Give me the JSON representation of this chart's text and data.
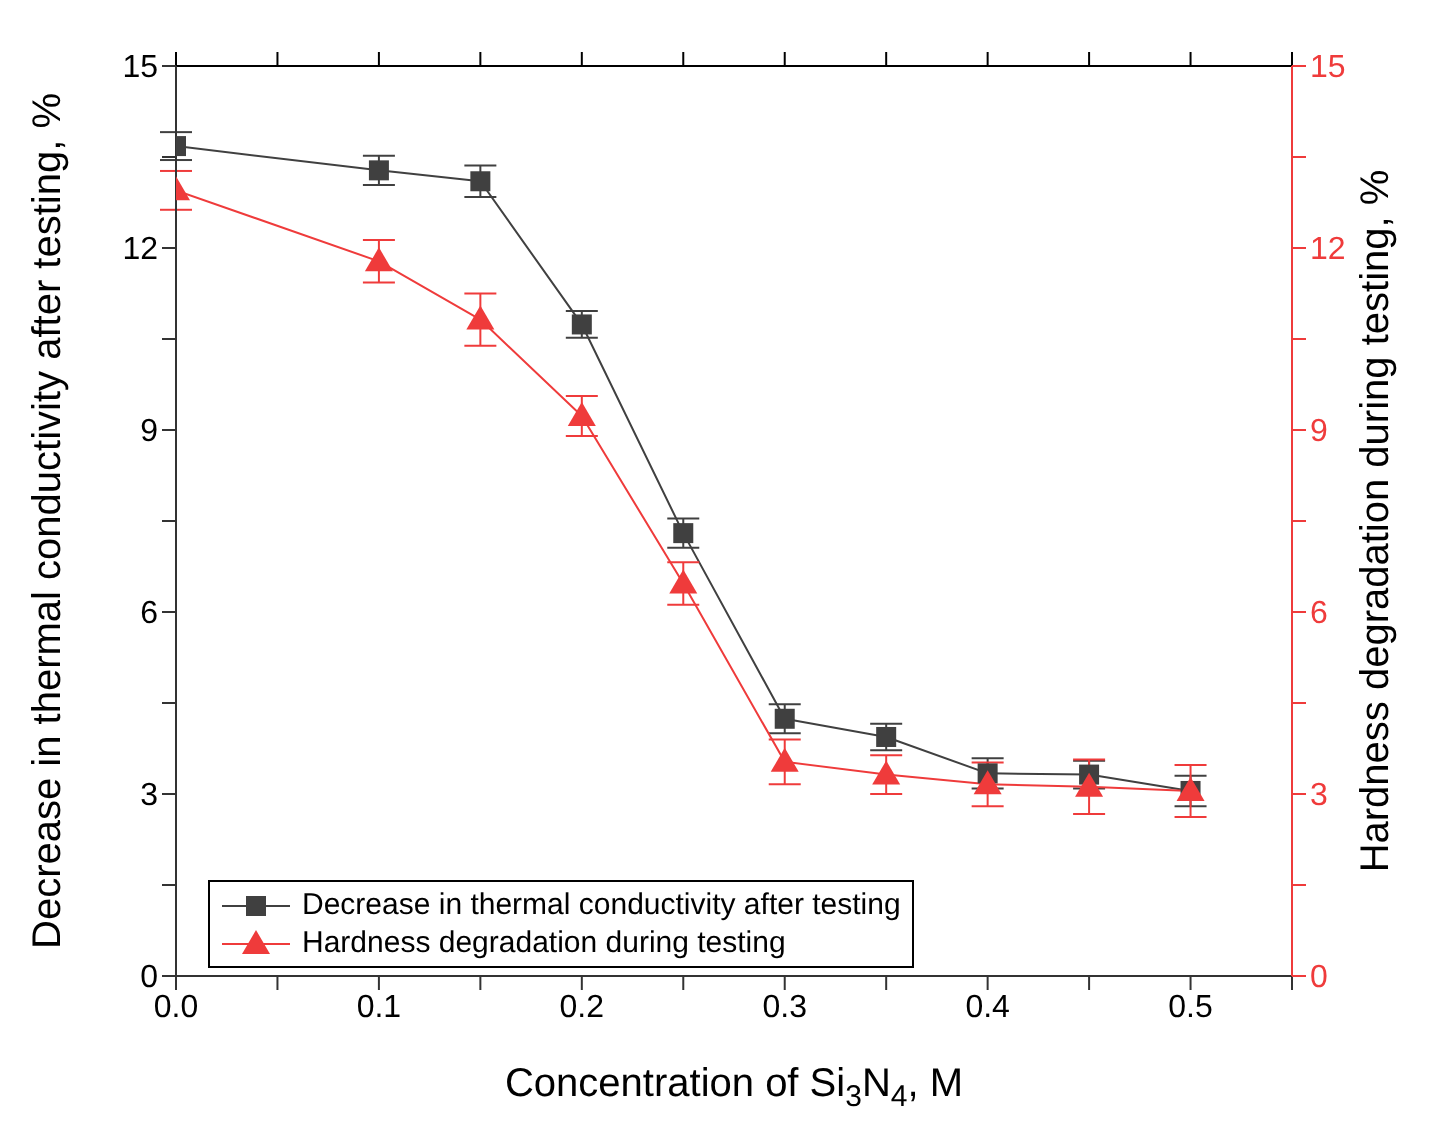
{
  "chart_data": {
    "type": "line",
    "xlabel": "Concentration of Si$_{3}$N$_{4}$, M",
    "ylabel": "Decrease in thermal conductivity after testing, %",
    "y2label": "Hardness degradation during testing, %",
    "x": [
      0,
      0.1,
      0.15,
      0.2,
      0.25,
      0.3,
      0.35,
      0.4,
      0.45,
      0.5
    ],
    "series": [
      {
        "name": "Decrease in thermal conductivity after testing",
        "color": "#404040",
        "marker": "square",
        "values": [
          13.68,
          13.28,
          13.1,
          10.74,
          7.3,
          4.24,
          3.94,
          3.34,
          3.32,
          3.05
        ],
        "errors": [
          0.23,
          0.24,
          0.26,
          0.22,
          0.24,
          0.24,
          0.22,
          0.25,
          0.23,
          0.25
        ]
      },
      {
        "name": "Hardness degradation during testing",
        "color": "#ef3b3b",
        "marker": "triangle",
        "axis": "y2",
        "values": [
          12.95,
          11.78,
          10.82,
          9.23,
          6.47,
          3.53,
          3.32,
          3.16,
          3.12,
          3.05
        ],
        "errors": [
          0.32,
          0.35,
          0.43,
          0.33,
          0.35,
          0.37,
          0.32,
          0.36,
          0.45,
          0.43
        ]
      }
    ],
    "xlim": [
      0,
      0.55
    ],
    "xticks": [
      {
        "value": 0,
        "label": "0.0"
      },
      {
        "value": 0.05,
        "label": null
      },
      0.1,
      {
        "value": 0.15,
        "label": null
      },
      0.2,
      {
        "value": 0.25,
        "label": null
      },
      0.3,
      {
        "value": 0.35,
        "label": null
      },
      0.4,
      {
        "value": 0.45,
        "label": null
      },
      0.5,
      {
        "value": 0.55,
        "label": null
      }
    ],
    "ylim": [
      0,
      15
    ],
    "yticks": [
      0,
      {
        "value": 1.5,
        "label": null
      },
      3,
      {
        "value": 4.5,
        "label": null
      },
      6,
      {
        "value": 7.5,
        "label": null
      },
      9,
      {
        "value": 10.5,
        "label": null
      },
      12,
      {
        "value": 13.5,
        "label": null
      },
      15
    ],
    "y2lim": [
      0,
      15
    ],
    "y2ticks": [
      0,
      {
        "value": 1.5,
        "label": null
      },
      3,
      {
        "value": 4.5,
        "label": null
      },
      6,
      {
        "value": 7.5,
        "label": null
      },
      9,
      {
        "value": 10.5,
        "label": null
      },
      12,
      {
        "value": 13.5,
        "label": null
      },
      15
    ],
    "grid": false,
    "legend": "bottom left",
    "line_style": "solid"
  }
}
